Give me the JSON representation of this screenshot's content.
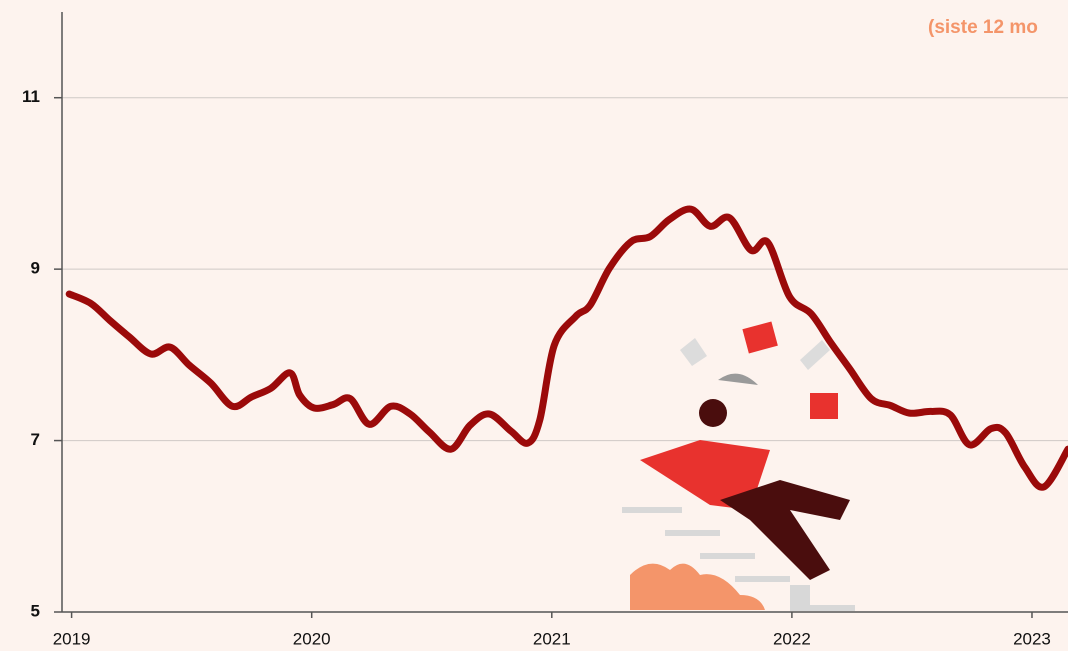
{
  "chart_data": {
    "type": "line",
    "subtitle": "(siste 12 mo",
    "x": [
      2018.99,
      2019.08,
      2019.16,
      2019.24,
      2019.33,
      2019.41,
      2019.49,
      2019.58,
      2019.67,
      2019.75,
      2019.83,
      2019.91,
      2019.95,
      2020.01,
      2020.09,
      2020.16,
      2020.24,
      2020.33,
      2020.41,
      2020.49,
      2020.58,
      2020.66,
      2020.74,
      2020.83,
      2020.9,
      2020.95,
      2021.01,
      2021.1,
      2021.16,
      2021.24,
      2021.33,
      2021.41,
      2021.49,
      2021.58,
      2021.66,
      2021.74,
      2021.83,
      2021.9,
      2021.99,
      2022.08,
      2022.16,
      2022.24,
      2022.33,
      2022.41,
      2022.49,
      2022.58,
      2022.66,
      2022.74,
      2022.83,
      2022.89,
      2022.97,
      2023.05,
      2023.15
    ],
    "series": [
      {
        "color": "#9b0a0a",
        "values": [
          8.71,
          8.6,
          8.4,
          8.21,
          8.01,
          8.09,
          7.88,
          7.67,
          7.4,
          7.51,
          7.61,
          7.79,
          7.53,
          7.38,
          7.42,
          7.49,
          7.19,
          7.4,
          7.31,
          7.1,
          6.9,
          7.18,
          7.31,
          7.11,
          6.97,
          7.24,
          8.11,
          8.45,
          8.58,
          9.01,
          9.32,
          9.38,
          9.58,
          9.7,
          9.5,
          9.6,
          9.22,
          9.31,
          8.68,
          8.48,
          8.15,
          7.84,
          7.49,
          7.41,
          7.32,
          7.34,
          7.3,
          6.95,
          7.14,
          7.09,
          6.69,
          6.46,
          6.9
        ]
      }
    ],
    "xlim": [
      2018.96,
      2023.15
    ],
    "xticks": [
      2019,
      2020,
      2021,
      2022,
      2023
    ],
    "ylim": [
      5,
      12
    ],
    "yticks": [
      5,
      7,
      9,
      11
    ],
    "grid": true
  }
}
